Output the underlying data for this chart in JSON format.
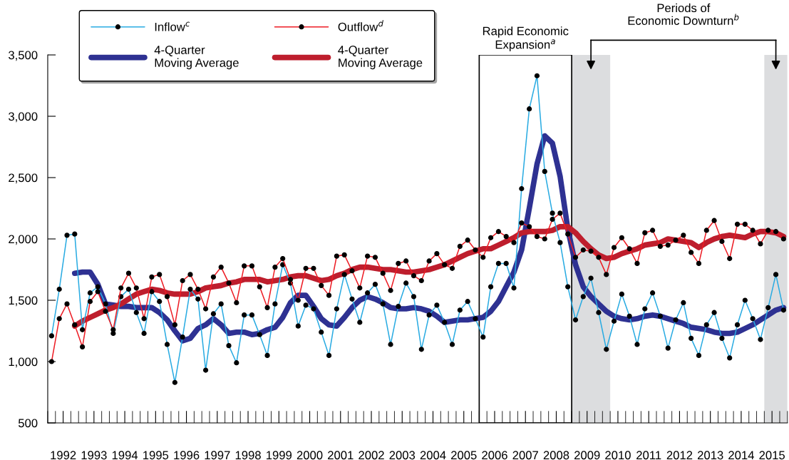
{
  "chart_data": {
    "type": "line",
    "x": [
      1992.125,
      1992.375,
      1992.625,
      1992.875,
      1993.125,
      1993.375,
      1993.625,
      1993.875,
      1994.125,
      1994.375,
      1994.625,
      1994.875,
      1995.125,
      1995.375,
      1995.625,
      1995.875,
      1996.125,
      1996.375,
      1996.625,
      1996.875,
      1997.125,
      1997.375,
      1997.625,
      1997.875,
      1998.125,
      1998.375,
      1998.625,
      1998.875,
      1999.125,
      1999.375,
      1999.625,
      1999.875,
      2000.125,
      2000.375,
      2000.625,
      2000.875,
      2001.125,
      2001.375,
      2001.625,
      2001.875,
      2002.125,
      2002.375,
      2002.625,
      2002.875,
      2003.125,
      2003.375,
      2003.625,
      2003.875,
      2004.125,
      2004.375,
      2004.625,
      2004.875,
      2005.125,
      2005.375,
      2005.625,
      2005.875,
      2006.125,
      2006.375,
      2006.625,
      2006.875,
      2007.125,
      2007.375,
      2007.625,
      2007.875,
      2008.125,
      2008.375,
      2008.625,
      2008.875,
      2009.125,
      2009.375,
      2009.625,
      2009.875,
      2010.125,
      2010.375,
      2010.625,
      2010.875,
      2011.125,
      2011.375,
      2011.625,
      2011.875,
      2012.125,
      2012.375,
      2012.625,
      2012.875,
      2013.125,
      2013.375,
      2013.625,
      2013.875,
      2014.125,
      2014.375,
      2014.625,
      2014.875,
      2015.125,
      2015.375,
      2015.625,
      2015.875
    ],
    "series": [
      {
        "name": "Inflow$^{c}$",
        "color": "#29abe2",
        "marker": "circle",
        "values": [
          1210,
          1590,
          2030,
          2040,
          1260,
          1560,
          1610,
          1470,
          1230,
          1530,
          1590,
          1400,
          1230,
          1570,
          1490,
          1140,
          830,
          1200,
          1590,
          1510,
          930,
          1390,
          1470,
          1130,
          990,
          1380,
          1380,
          1220,
          1050,
          1470,
          1790,
          1640,
          1290,
          1460,
          1430,
          1240,
          1050,
          1430,
          1710,
          1510,
          1320,
          1560,
          1630,
          1470,
          1140,
          1450,
          1640,
          1530,
          1100,
          1380,
          1460,
          1320,
          1140,
          1420,
          1490,
          1350,
          1200,
          1610,
          1800,
          1800,
          1600,
          2410,
          3060,
          3330,
          2550,
          2210,
          1970,
          1610,
          1340,
          1530,
          1680,
          1400,
          1100,
          1330,
          1550,
          1370,
          1140,
          1430,
          1560,
          1370,
          1110,
          1340,
          1480,
          1190,
          1050,
          1300,
          1400,
          1190,
          1030,
          1300,
          1500,
          1350,
          1180,
          1440,
          1710,
          1420
        ]
      },
      {
        "name": "4-Quarter\nMoving Average",
        "color": "#2e3192",
        "marker": "none",
        "values": [
          null,
          null,
          null,
          1720,
          1730,
          1730,
          1630,
          1470,
          1460,
          1450,
          1450,
          1440,
          1440,
          1440,
          1400,
          1340,
          1250,
          1170,
          1190,
          1270,
          1300,
          1350,
          1300,
          1230,
          1240,
          1240,
          1220,
          1230,
          1260,
          1280,
          1360,
          1480,
          1540,
          1540,
          1450,
          1350,
          1300,
          1290,
          1360,
          1440,
          1500,
          1530,
          1510,
          1480,
          1440,
          1430,
          1430,
          1440,
          1430,
          1410,
          1370,
          1320,
          1330,
          1340,
          1340,
          1350,
          1360,
          1410,
          1490,
          1610,
          1730,
          1910,
          2250,
          2610,
          2840,
          2780,
          2510,
          2080,
          1790,
          1610,
          1530,
          1470,
          1410,
          1370,
          1350,
          1340,
          1350,
          1370,
          1380,
          1370,
          1350,
          1330,
          1310,
          1280,
          1270,
          1260,
          1240,
          1230,
          1230,
          1240,
          1270,
          1300,
          1340,
          1380,
          1420,
          1440
        ]
      },
      {
        "name": "Outflow$^{d}$",
        "color": "#ed1c24",
        "marker": "circle",
        "values": [
          1000,
          1350,
          1470,
          1300,
          1120,
          1490,
          1570,
          1410,
          1260,
          1600,
          1720,
          1600,
          1350,
          1690,
          1710,
          1530,
          1300,
          1660,
          1710,
          1590,
          1430,
          1690,
          1770,
          1640,
          1480,
          1780,
          1780,
          1610,
          1440,
          1770,
          1840,
          1670,
          1500,
          1760,
          1760,
          1620,
          1540,
          1860,
          1870,
          1740,
          1600,
          1860,
          1850,
          1720,
          1580,
          1800,
          1820,
          1700,
          1660,
          1820,
          1880,
          1790,
          1760,
          1940,
          1990,
          1910,
          1850,
          2010,
          2060,
          2020,
          1970,
          2130,
          2100,
          2020,
          2000,
          2160,
          2210,
          2040,
          1850,
          1910,
          1900,
          1850,
          1710,
          1930,
          2010,
          1920,
          1800,
          2050,
          2070,
          1940,
          1950,
          1990,
          2030,
          1890,
          1800,
          2070,
          2150,
          1980,
          1840,
          2120,
          2120,
          2070,
          1960,
          2070,
          2060,
          2000
        ]
      },
      {
        "name": "4-Quarter\nMoving Average",
        "color": "#be1e2d",
        "marker": "none",
        "values": [
          null,
          null,
          null,
          1290,
          1330,
          1360,
          1390,
          1420,
          1440,
          1470,
          1510,
          1550,
          1570,
          1590,
          1580,
          1560,
          1550,
          1550,
          1550,
          1570,
          1600,
          1610,
          1620,
          1640,
          1650,
          1670,
          1670,
          1670,
          1650,
          1660,
          1670,
          1690,
          1700,
          1700,
          1680,
          1660,
          1670,
          1700,
          1720,
          1750,
          1770,
          1770,
          1760,
          1750,
          1750,
          1740,
          1730,
          1730,
          1740,
          1750,
          1770,
          1790,
          1820,
          1850,
          1880,
          1900,
          1920,
          1920,
          1950,
          1980,
          2010,
          2050,
          2060,
          2060,
          2060,
          2070,
          2100,
          2100,
          2050,
          1980,
          1920,
          1870,
          1840,
          1850,
          1880,
          1900,
          1920,
          1950,
          1960,
          1970,
          2000,
          1990,
          1980,
          1970,
          1930,
          1970,
          2000,
          2020,
          2030,
          2020,
          2010,
          2040,
          2060,
          2060,
          2050,
          2020
        ]
      }
    ],
    "xlim": [
      1992,
      2016
    ],
    "ylim": [
      500,
      3500
    ],
    "yticks": [
      {
        "value": 500,
        "label": "500"
      },
      {
        "value": 1000,
        "label": "1,000"
      },
      {
        "value": 1500,
        "label": "1,500"
      },
      {
        "value": 2000,
        "label": "2,000"
      },
      {
        "value": 2500,
        "label": "2,500"
      },
      {
        "value": 3000,
        "label": "3,000"
      },
      {
        "value": 3500,
        "label": "3,500"
      }
    ],
    "xticks": [
      {
        "value": 1992.5,
        "label": "1992"
      },
      {
        "value": 1993.5,
        "label": "1993"
      },
      {
        "value": 1994.5,
        "label": "1994"
      },
      {
        "value": 1995.5,
        "label": "1995"
      },
      {
        "value": 1996.5,
        "label": "1996"
      },
      {
        "value": 1997.5,
        "label": "1997"
      },
      {
        "value": 1998.5,
        "label": "1998"
      },
      {
        "value": 1999.5,
        "label": "1999"
      },
      {
        "value": 2000.5,
        "label": "2000"
      },
      {
        "value": 2001.5,
        "label": "2001"
      },
      {
        "value": 2002.5,
        "label": "2002"
      },
      {
        "value": 2003.5,
        "label": "2003"
      },
      {
        "value": 2004.5,
        "label": "2004"
      },
      {
        "value": 2005.5,
        "label": "2005"
      },
      {
        "value": 2006.5,
        "label": "2006"
      },
      {
        "value": 2007.5,
        "label": "2007"
      },
      {
        "value": 2008.5,
        "label": "2008"
      },
      {
        "value": 2009.5,
        "label": "2009"
      },
      {
        "value": 2010.5,
        "label": "2010"
      },
      {
        "value": 2011.5,
        "label": "2011"
      },
      {
        "value": 2012.5,
        "label": "2012"
      },
      {
        "value": 2013.5,
        "label": "2013"
      },
      {
        "value": 2014.5,
        "label": "2014"
      },
      {
        "value": 2015.5,
        "label": "2015"
      }
    ],
    "bands": [
      {
        "axis": "x",
        "from": 2006,
        "to": 2009,
        "color": "#ffffff",
        "label": "Rapid Economic\nExpansion$^{a}$"
      },
      {
        "axis": "x",
        "from": 2009,
        "to": 2010.25,
        "color": "#dcdddf"
      },
      {
        "axis": "x",
        "from": 2015.25,
        "to": 2016,
        "color": "#dcdddf"
      }
    ],
    "annotations": [
      "Periods of\nEconomic Downturn$^{b}$"
    ],
    "legend": "top left",
    "grid": false,
    "line_style": "solid"
  }
}
